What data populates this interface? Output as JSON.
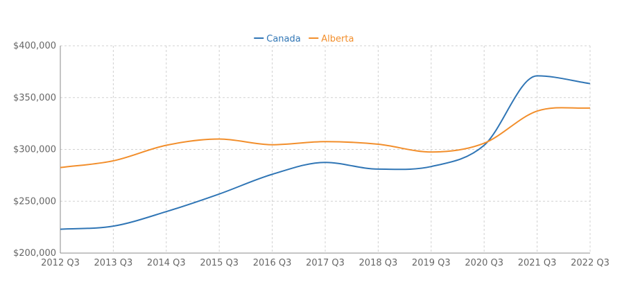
{
  "chart_data": {
    "type": "line",
    "title": "",
    "xlabel": "",
    "ylabel": "",
    "categories": [
      "2012 Q3",
      "2013 Q3",
      "2014 Q3",
      "2015 Q3",
      "2016 Q3",
      "2017 Q3",
      "2018 Q3",
      "2019 Q3",
      "2020 Q3",
      "2021 Q3",
      "2022 Q3"
    ],
    "y_ticks": [
      "$200,000",
      "$250,000",
      "$300,000",
      "$350,000",
      "$400,000"
    ],
    "ylim": [
      200000,
      400000
    ],
    "grid": true,
    "legend_position": "top-center",
    "series": [
      {
        "name": "Canada",
        "color": "#2f75b5",
        "values": [
          223000,
          226000,
          240000,
          257000,
          276000,
          287500,
          281000,
          283500,
          304000,
          371000,
          363500
        ]
      },
      {
        "name": "Alberta",
        "color": "#f28e2b",
        "values": [
          282500,
          289000,
          304000,
          310000,
          304500,
          307500,
          305000,
          297500,
          306000,
          337000,
          340000
        ]
      }
    ]
  }
}
